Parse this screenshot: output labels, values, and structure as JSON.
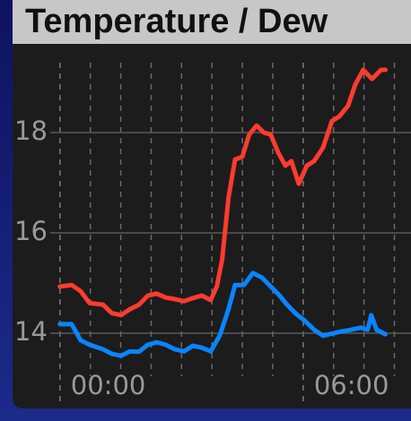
{
  "chart_data": {
    "type": "line",
    "title": "Temperature / Dew",
    "xlim": [
      -0.15,
      8.66
    ],
    "xticks": [
      {
        "value": 0,
        "label": "00:00"
      },
      {
        "value": 6,
        "label": "06:00"
      }
    ],
    "xminorticks": [
      0.75,
      1.5,
      2.25,
      3,
      3.75,
      4.5,
      5.25,
      6.75,
      7.5,
      8.25
    ],
    "ylim": [
      12.5,
      19.5
    ],
    "yticks": [
      14,
      16,
      18
    ],
    "grid": true,
    "series": [
      {
        "color": "#ff3b30",
        "x": [
          0,
          0.29,
          0.51,
          0.73,
          1.06,
          1.28,
          1.51,
          1.73,
          1.95,
          2.17,
          2.39,
          2.61,
          2.83,
          3.06,
          3.28,
          3.5,
          3.72,
          3.87,
          4.0,
          4.16,
          4.32,
          4.5,
          4.67,
          4.85,
          5.03,
          5.2,
          5.38,
          5.56,
          5.71,
          5.89,
          6.09,
          6.27,
          6.49,
          6.71,
          6.89,
          7.11,
          7.28,
          7.48,
          7.7,
          7.92,
          8.03
        ],
        "values": [
          14.93,
          14.96,
          14.84,
          14.6,
          14.57,
          14.4,
          14.36,
          14.48,
          14.57,
          14.75,
          14.79,
          14.71,
          14.68,
          14.64,
          14.7,
          14.75,
          14.66,
          14.93,
          15.46,
          16.71,
          17.46,
          17.52,
          17.96,
          18.14,
          18.0,
          17.96,
          17.61,
          17.34,
          17.43,
          16.98,
          17.34,
          17.43,
          17.7,
          18.23,
          18.32,
          18.54,
          18.95,
          19.25,
          19.07,
          19.25,
          19.25
        ]
      },
      {
        "color": "#0a84ff",
        "x": [
          0,
          0.29,
          0.51,
          0.73,
          1.06,
          1.28,
          1.51,
          1.73,
          1.95,
          2.17,
          2.39,
          2.61,
          2.83,
          3.06,
          3.28,
          3.5,
          3.72,
          3.94,
          4.16,
          4.32,
          4.54,
          4.76,
          4.98,
          5.2,
          5.42,
          5.6,
          5.82,
          6.04,
          6.27,
          6.49,
          6.75,
          6.97,
          7.19,
          7.42,
          7.59,
          7.68,
          7.81,
          8.03
        ],
        "values": [
          14.18,
          14.18,
          13.86,
          13.77,
          13.68,
          13.59,
          13.55,
          13.64,
          13.63,
          13.77,
          13.82,
          13.77,
          13.68,
          13.64,
          13.75,
          13.71,
          13.64,
          13.95,
          14.48,
          14.96,
          14.96,
          15.2,
          15.11,
          14.93,
          14.75,
          14.57,
          14.39,
          14.25,
          14.07,
          13.95,
          14.0,
          14.04,
          14.07,
          14.11,
          14.07,
          14.36,
          14.07,
          13.98
        ]
      }
    ]
  }
}
